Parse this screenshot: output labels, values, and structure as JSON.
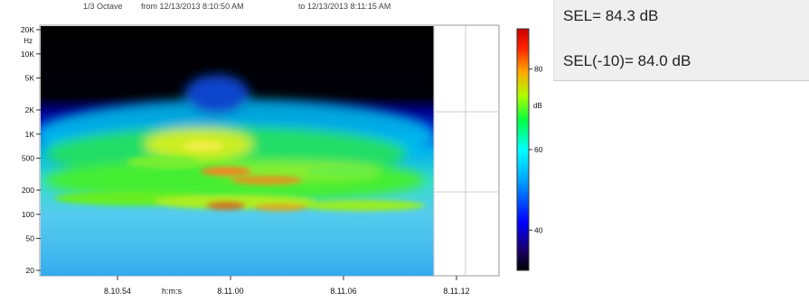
{
  "header": {
    "band": "1/3 Octave",
    "from_label": "from 12/13/2013 8:10:50 AM",
    "to_label": "to 12/13/2013 8:11:15 AM"
  },
  "sel_panel": {
    "sel": "SEL= 84.3 dB",
    "sel_minus10": "SEL(-10)= 84.0 dB"
  },
  "chart_data": {
    "type": "heatmap",
    "title": "",
    "ylabel": "Hz",
    "xlabel": "h:m:s",
    "x_ticks": [
      "8.10.54",
      "8.11.00",
      "8.11.06",
      "8.11.12"
    ],
    "y_ticks": [
      "20K",
      "10K",
      "5K",
      "2K",
      "1K",
      "500",
      "200",
      "100",
      "50",
      "20"
    ],
    "y_scale": "log",
    "y_range_hz": [
      20,
      20000
    ],
    "colorbar": {
      "label": "dB",
      "ticks": [
        "80",
        "60",
        "40"
      ],
      "range_db": [
        30,
        90
      ],
      "colors": [
        "#000000",
        "#1a0066",
        "#0000ff",
        "#00aaff",
        "#00ffff",
        "#00ff44",
        "#aaff00",
        "#ffaa00",
        "#ff2200",
        "#cc0000"
      ]
    },
    "data_end_time": "8.11.11",
    "grid": true
  }
}
